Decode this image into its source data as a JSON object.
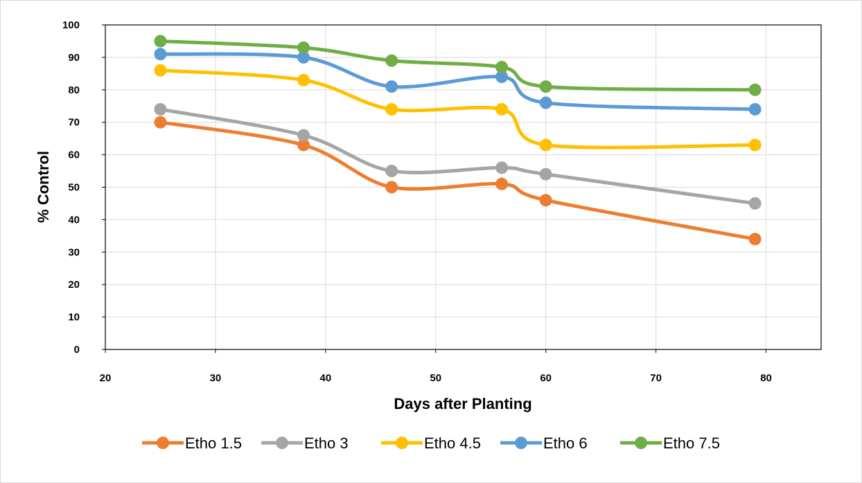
{
  "chart_data": {
    "type": "line",
    "title": "",
    "xlabel": "Days after Planting",
    "ylabel": "% Control",
    "xlim": [
      20,
      85
    ],
    "ylim": [
      0,
      100
    ],
    "xticks": [
      20,
      30,
      40,
      50,
      60,
      70,
      80
    ],
    "yticks": [
      0,
      10,
      20,
      30,
      40,
      50,
      60,
      70,
      80,
      90,
      100
    ],
    "grid": true,
    "smooth": true,
    "legend_position": "bottom",
    "x": [
      25,
      38,
      46,
      56,
      60,
      79
    ],
    "series": [
      {
        "name": "Etho 1.5",
        "color": "#ed7d31",
        "values": [
          70,
          63,
          50,
          51,
          46,
          34
        ]
      },
      {
        "name": "Etho 3",
        "color": "#a5a5a5",
        "values": [
          74,
          66,
          55,
          56,
          54,
          45
        ]
      },
      {
        "name": "Etho 4.5",
        "color": "#ffc000",
        "values": [
          86,
          83,
          74,
          74,
          63,
          63
        ]
      },
      {
        "name": "Etho 6",
        "color": "#5b9bd5",
        "values": [
          91,
          90,
          81,
          84,
          76,
          74
        ]
      },
      {
        "name": "Etho 7.5",
        "color": "#70ad47",
        "values": [
          95,
          93,
          89,
          87,
          81,
          80
        ]
      }
    ]
  }
}
